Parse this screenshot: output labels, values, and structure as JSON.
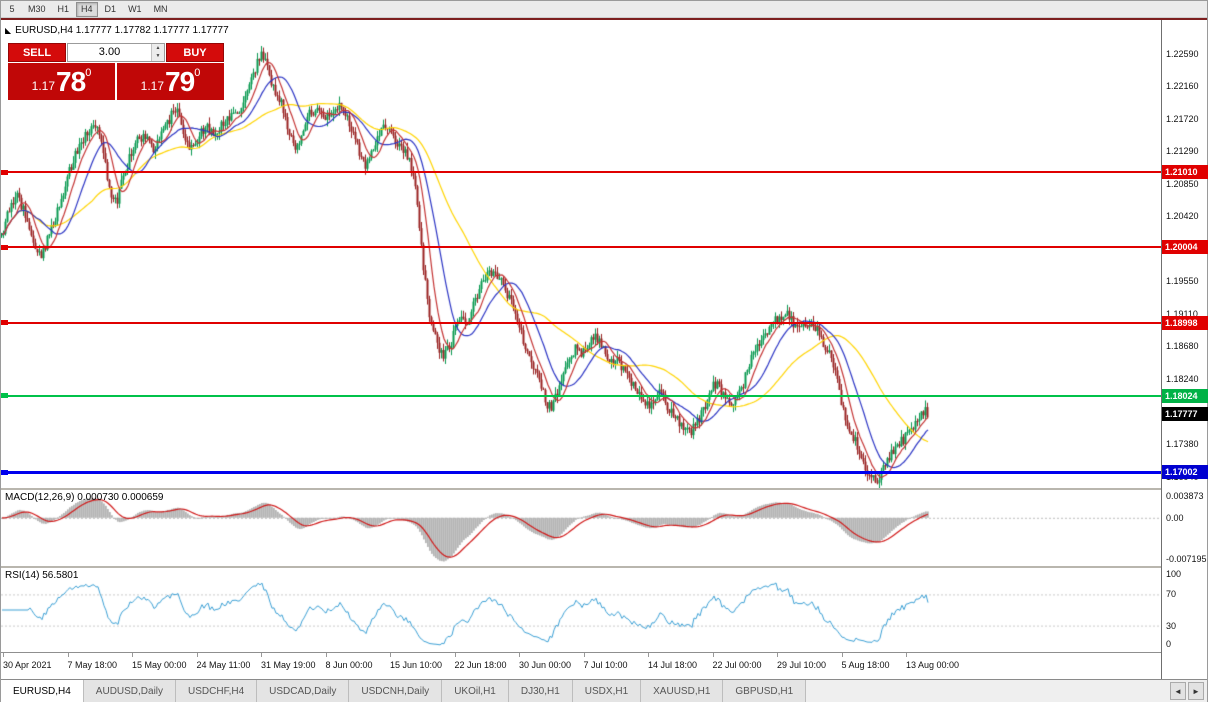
{
  "toolbar": {
    "timeframes": [
      "5",
      "M30",
      "H1",
      "H4",
      "D1",
      "W1",
      "MN"
    ],
    "active_timeframe": "H4"
  },
  "chart": {
    "ohlc_label": "EURUSD,H4 1.17777 1.17782 1.17777 1.17777",
    "trade": {
      "sell_label": "SELL",
      "buy_label": "BUY",
      "volume": "3.00",
      "spin_up": "▲",
      "spin_down": "▼",
      "sell_price_prefix": "1.17",
      "sell_price_big": "78",
      "sell_price_sup": "0",
      "buy_price_prefix": "1.17",
      "buy_price_big": "79",
      "buy_price_sup": "0"
    },
    "price_scale": [
      "1.22590",
      "1.22160",
      "1.21720",
      "1.21290",
      "1.20850",
      "1.20420",
      "1.19980",
      "1.19550",
      "1.19110",
      "1.18680",
      "1.18240",
      "1.17810",
      "1.17380",
      "1.16940"
    ],
    "levels": [
      {
        "price": "1.21010",
        "value": 1.2101,
        "line_color": "#e00000",
        "badge_color": "#e00000",
        "text_color": "#ffffff",
        "thickness": 2
      },
      {
        "price": "1.20004",
        "value": 1.20004,
        "line_color": "#e00000",
        "badge_color": "#e00000",
        "text_color": "#ffffff",
        "thickness": 2
      },
      {
        "price": "1.18998",
        "value": 1.18998,
        "line_color": "#e00000",
        "badge_color": "#e00000",
        "text_color": "#ffffff",
        "thickness": 2
      },
      {
        "price": "1.18024",
        "value": 1.18024,
        "line_color": "#00c24a",
        "badge_color": "#00b246",
        "text_color": "#ffffff",
        "thickness": 2
      },
      {
        "price": "1.17002",
        "value": 1.17002,
        "line_color": "#0000ee",
        "badge_color": "#0000d0",
        "text_color": "#ffffff",
        "thickness": 3
      }
    ],
    "current_price": {
      "price": "1.17777",
      "value": 1.17777,
      "badge_color": "#000000",
      "text_color": "#ffffff"
    }
  },
  "macd": {
    "label": "MACD(12,26,9) 0.000730 0.000659",
    "scale_top": "0.003873",
    "scale_zero": "0.00",
    "scale_bottom": "-0.007195"
  },
  "rsi": {
    "label": "RSI(14) 56.5801",
    "scale": {
      "top": "100",
      "upper": "70",
      "lower": "30",
      "bottom": "0"
    }
  },
  "time_axis": [
    "30 Apr 2021",
    "7 May 18:00",
    "15 May 00:00",
    "24 May 11:00",
    "31 May 19:00",
    "8 Jun 00:00",
    "15 Jun 10:00",
    "22 Jun 18:00",
    "30 Jun 00:00",
    "7 Jul 10:00",
    "14 Jul 18:00",
    "22 Jul 00:00",
    "29 Jul 10:00",
    "5 Aug 18:00",
    "13 Aug 00:00"
  ],
  "tabs": {
    "active": "EURUSD,H4",
    "items": [
      "EURUSD,H4",
      "AUDUSD,Daily",
      "USDCHF,H4",
      "USDCAD,Daily",
      "USDCNH,Daily",
      "UKOil,H1",
      "DJ30,H1",
      "USDX,H1",
      "XAUUSD,H1",
      "GBPUSD,H1"
    ],
    "scroll_left_icon": "◄",
    "scroll_right_icon": "►"
  },
  "chart_data": {
    "type": "candlestick",
    "symbol": "EURUSD",
    "timeframe": "H4",
    "x_range": [
      "30 Apr 2021",
      "13 Aug 2021"
    ],
    "price_range": [
      1.1679,
      1.2304
    ],
    "horizontal_levels": [
      1.2101,
      1.20004,
      1.18998,
      1.18024,
      1.17002
    ],
    "last_price": 1.17777,
    "indicators": [
      {
        "name": "MACD",
        "params": [
          12,
          26,
          9
        ],
        "current": [
          0.00073,
          0.000659
        ],
        "scale": [
          -0.007195,
          0.003873
        ]
      },
      {
        "name": "RSI",
        "params": [
          14
        ],
        "current": 56.5801,
        "scale": [
          0,
          100
        ]
      }
    ],
    "moving_averages": [
      {
        "period": 46,
        "color": "#ffd400"
      },
      {
        "period": 18,
        "color": "#2b34c4"
      },
      {
        "period": 8,
        "color": "#c43434"
      }
    ],
    "colors": {
      "up": "#089950",
      "down": "#992222",
      "macd_hist": "#b4b4b4",
      "macd_signal": "#d01818",
      "rsi_line": "#3a9fd4"
    },
    "price_path_anchors": [
      [
        0,
        1.2015
      ],
      [
        8,
        1.2052
      ],
      [
        16,
        1.207
      ],
      [
        24,
        1.2042
      ],
      [
        32,
        1.2005
      ],
      [
        40,
        1.1992
      ],
      [
        48,
        1.2015
      ],
      [
        56,
        1.2048
      ],
      [
        64,
        1.2085
      ],
      [
        72,
        1.2118
      ],
      [
        80,
        1.214
      ],
      [
        88,
        1.2155
      ],
      [
        95,
        1.2168
      ],
      [
        101,
        1.2138
      ],
      [
        108,
        1.2078
      ],
      [
        115,
        1.206
      ],
      [
        122,
        1.2098
      ],
      [
        130,
        1.2125
      ],
      [
        138,
        1.2148
      ],
      [
        146,
        1.2142
      ],
      [
        152,
        1.2128
      ],
      [
        160,
        1.2152
      ],
      [
        168,
        1.2172
      ],
      [
        175,
        1.2188
      ],
      [
        182,
        1.215
      ],
      [
        189,
        1.2128
      ],
      [
        196,
        1.2145
      ],
      [
        204,
        1.2162
      ],
      [
        212,
        1.215
      ],
      [
        220,
        1.2162
      ],
      [
        228,
        1.2172
      ],
      [
        236,
        1.218
      ],
      [
        244,
        1.2198
      ],
      [
        252,
        1.2228
      ],
      [
        259,
        1.2258
      ],
      [
        265,
        1.2243
      ],
      [
        271,
        1.2218
      ],
      [
        277,
        1.2202
      ],
      [
        283,
        1.218
      ],
      [
        289,
        1.2148
      ],
      [
        295,
        1.2132
      ],
      [
        301,
        1.2158
      ],
      [
        308,
        1.2178
      ],
      [
        316,
        1.2186
      ],
      [
        324,
        1.2172
      ],
      [
        332,
        1.218
      ],
      [
        340,
        1.2193
      ],
      [
        348,
        1.2165
      ],
      [
        356,
        1.2135
      ],
      [
        364,
        1.2112
      ],
      [
        370,
        1.2124
      ],
      [
        377,
        1.2148
      ],
      [
        384,
        1.2163
      ],
      [
        390,
        1.2155
      ],
      [
        396,
        1.2142
      ],
      [
        402,
        1.213
      ],
      [
        408,
        1.2117
      ],
      [
        413,
        1.2092
      ],
      [
        418,
        1.2025
      ],
      [
        423,
        1.1962
      ],
      [
        428,
        1.1908
      ],
      [
        433,
        1.1882
      ],
      [
        438,
        1.1866
      ],
      [
        443,
        1.1856
      ],
      [
        449,
        1.1872
      ],
      [
        455,
        1.1892
      ],
      [
        461,
        1.1908
      ],
      [
        467,
        1.19
      ],
      [
        473,
        1.1928
      ],
      [
        479,
        1.1948
      ],
      [
        485,
        1.196
      ],
      [
        491,
        1.1969
      ],
      [
        497,
        1.1963
      ],
      [
        503,
        1.1948
      ],
      [
        509,
        1.1928
      ],
      [
        515,
        1.1904
      ],
      [
        521,
        1.188
      ],
      [
        527,
        1.1856
      ],
      [
        533,
        1.184
      ],
      [
        539,
        1.182
      ],
      [
        545,
        1.1792
      ],
      [
        551,
        1.1786
      ],
      [
        557,
        1.1812
      ],
      [
        563,
        1.184
      ],
      [
        569,
        1.1856
      ],
      [
        575,
        1.1866
      ],
      [
        581,
        1.186
      ],
      [
        587,
        1.1872
      ],
      [
        593,
        1.188
      ],
      [
        599,
        1.187
      ],
      [
        605,
        1.1856
      ],
      [
        611,
        1.1842
      ],
      [
        617,
        1.185
      ],
      [
        623,
        1.1836
      ],
      [
        629,
        1.182
      ],
      [
        635,
        1.181
      ],
      [
        641,
        1.18
      ],
      [
        647,
        1.179
      ],
      [
        653,
        1.1796
      ],
      [
        659,
        1.1806
      ],
      [
        665,
        1.179
      ],
      [
        671,
        1.178
      ],
      [
        677,
        1.177
      ],
      [
        683,
        1.176
      ],
      [
        689,
        1.1754
      ],
      [
        695,
        1.1764
      ],
      [
        701,
        1.178
      ],
      [
        707,
        1.18
      ],
      [
        713,
        1.182
      ],
      [
        719,
        1.181
      ],
      [
        725,
        1.1794
      ],
      [
        731,
        1.1786
      ],
      [
        737,
        1.18
      ],
      [
        743,
        1.1822
      ],
      [
        749,
        1.185
      ],
      [
        755,
        1.187
      ],
      [
        761,
        1.1881
      ],
      [
        767,
        1.1891
      ],
      [
        773,
        1.1901
      ],
      [
        779,
        1.1906
      ],
      [
        785,
        1.1911
      ],
      [
        791,
        1.19
      ],
      [
        797,
        1.189
      ],
      [
        803,
        1.1896
      ],
      [
        809,
        1.1901
      ],
      [
        815,
        1.189
      ],
      [
        821,
        1.1876
      ],
      [
        827,
        1.186
      ],
      [
        833,
        1.184
      ],
      [
        839,
        1.1801
      ],
      [
        845,
        1.177
      ],
      [
        851,
        1.175
      ],
      [
        857,
        1.173
      ],
      [
        863,
        1.171
      ],
      [
        869,
        1.1696
      ],
      [
        875,
        1.1688
      ],
      [
        881,
        1.1704
      ],
      [
        887,
        1.1718
      ],
      [
        893,
        1.1729
      ],
      [
        899,
        1.1739
      ],
      [
        905,
        1.1749
      ],
      [
        911,
        1.1756
      ],
      [
        917,
        1.1769
      ],
      [
        923,
        1.1782
      ],
      [
        928,
        1.1778
      ]
    ]
  }
}
